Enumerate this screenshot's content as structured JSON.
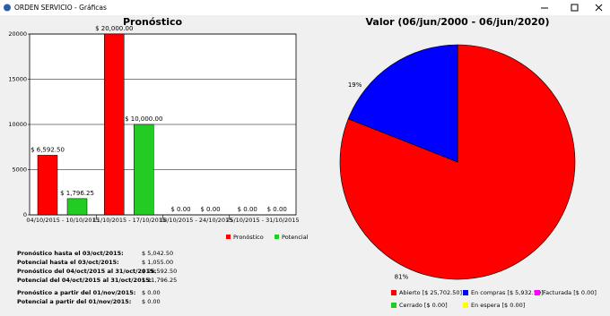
{
  "window": {
    "title": "ORDEN SERVICIO - Gráficas"
  },
  "chart_data": [
    {
      "type": "bar",
      "title": "Pronóstico",
      "categories": [
        "04/10/2015 - 10/10/2015",
        "11/10/2015 - 17/10/2015",
        "18/10/2015 - 24/10/2015",
        "25/10/2015 - 31/10/2015"
      ],
      "series": [
        {
          "name": "Pronóstico",
          "color": "#ff0000",
          "values": [
            6592.5,
            20000,
            0,
            0
          ],
          "value_labels": [
            "$ 6,592.50",
            "$ 20,000.00",
            "$ 0.00",
            "$ 0.00"
          ]
        },
        {
          "name": "Potencial",
          "color": "#22cc22",
          "values": [
            1796.25,
            10000,
            0,
            0
          ],
          "value_labels": [
            "$ 1,796.25",
            "$ 10,000.00",
            "$ 0.00",
            "$ 0.00"
          ]
        }
      ],
      "ylim": [
        0,
        20000
      ],
      "yticks": [
        0,
        5000,
        10000,
        15000,
        20000
      ],
      "grid": true
    },
    {
      "type": "pie",
      "title": "Valor (06/jun/2000 - 06/jun/2020)",
      "series": [
        {
          "name": "Abierto [$ 25,702.50]",
          "color": "#ff0000",
          "value": 81,
          "value_label": "81%"
        },
        {
          "name": "En compras [$ 5,932.50]",
          "color": "#0000ff",
          "value": 19,
          "value_label": "19%"
        },
        {
          "name": "Facturada [$ 0.00]",
          "color": "#ff00ff",
          "value": 0
        },
        {
          "name": "Cerrado [$ 0.00]",
          "color": "#22cc22",
          "value": 0
        },
        {
          "name": "En espera [$ 0.00]",
          "color": "#ffff00",
          "value": 0
        }
      ]
    }
  ],
  "summary": {
    "rows": [
      [
        "Pronóstico hasta el 03/oct/2015:",
        "$ 5,042.50"
      ],
      [
        "Potencial hasta el 03/oct/2015:",
        "$ 1,055.00"
      ],
      [
        "Pronóstico del 04/oct/2015 al 31/oct/2015:",
        "$ 26,592.50"
      ],
      [
        "Potencial del 04/oct/2015 al 31/oct/2015:",
        "$ 11,796.25"
      ],
      [
        "Pronóstico a partir del 01/nov/2015:",
        "$ 0.00"
      ],
      [
        "Potencial a partir del 01/nov/2015:",
        "$ 0.00"
      ]
    ]
  }
}
